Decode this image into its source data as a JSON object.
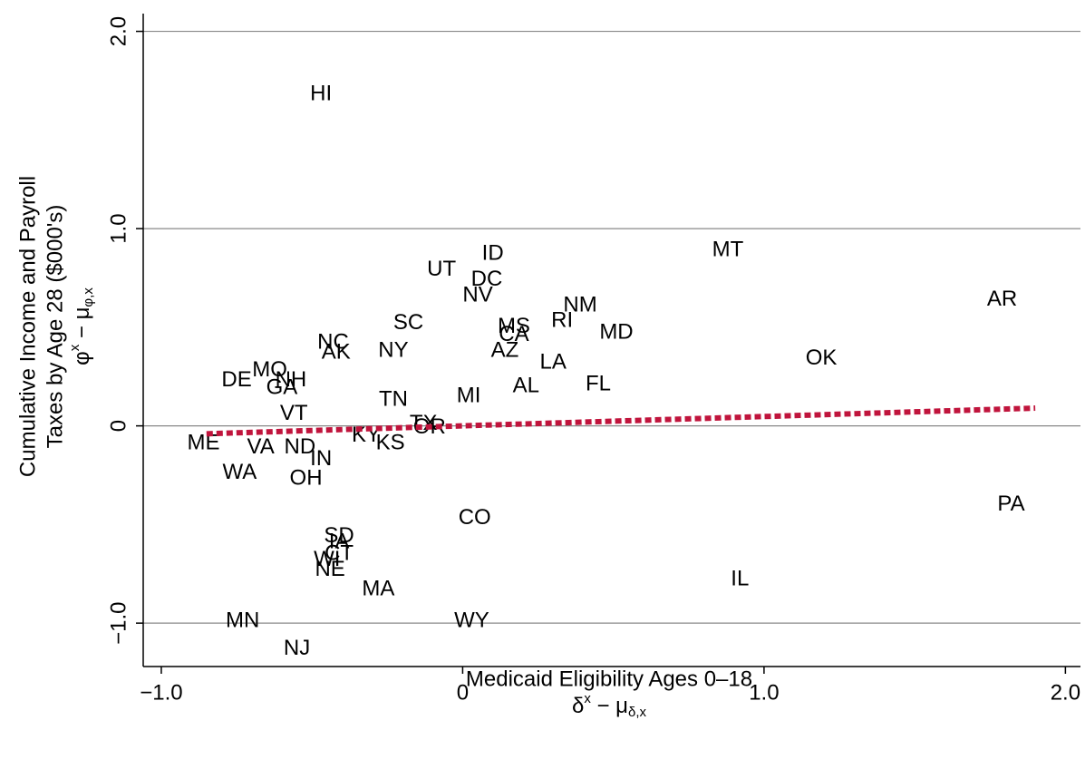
{
  "chart_data": {
    "type": "scatter",
    "y_label_lines": [
      "Cumulative Income and Payroll",
      "Taxes by Age 28 ($000's)"
    ],
    "y_math": {
      "base": "φ",
      "sup": "x",
      "mid": " − μ",
      "sub": "φ,x"
    },
    "x_label": "Medicaid Eligibility Ages 0–18",
    "x_math": {
      "base": "δ",
      "sup": "x",
      "mid": " − μ",
      "sub": "δ,x"
    },
    "xlim": [
      -1.06,
      2.05
    ],
    "ylim": [
      -1.22,
      2.09
    ],
    "xticks": [
      {
        "value": -1,
        "label": "−1.0"
      },
      0,
      {
        "value": 1,
        "label": "1.0"
      },
      {
        "value": 2,
        "label": "2.0"
      }
    ],
    "yticks": [
      {
        "value": -1,
        "label": "−1.0"
      },
      0,
      {
        "value": 1,
        "label": "1.0"
      },
      {
        "value": 2,
        "label": "2.0"
      }
    ],
    "grid": true,
    "point_labels": [
      "HI",
      "MT",
      "AR",
      "ID",
      "UT",
      "DC",
      "NV",
      "NM",
      "RI",
      "MD",
      "SC",
      "MS",
      "CA",
      "AZ",
      "LA",
      "OK",
      "NC",
      "AK",
      "NY",
      "MO",
      "DE",
      "NH",
      "GA",
      "AL",
      "FL",
      "TN",
      "MI",
      "VT",
      "TX",
      "OR",
      "KY",
      "KS",
      "ME",
      "VA",
      "ND",
      "IN",
      "WA",
      "OH",
      "PA",
      "CO",
      "SD",
      "IA",
      "CT",
      "WI",
      "NE",
      "MA",
      "IL",
      "MN",
      "WY",
      "NJ"
    ],
    "x": [
      -0.47,
      0.88,
      1.79,
      0.1,
      -0.07,
      0.08,
      0.05,
      0.39,
      0.33,
      0.51,
      -0.18,
      0.17,
      0.17,
      0.14,
      0.3,
      1.19,
      -0.43,
      -0.42,
      -0.23,
      -0.64,
      -0.75,
      -0.57,
      -0.6,
      0.21,
      0.45,
      -0.23,
      0.02,
      -0.56,
      -0.13,
      -0.11,
      -0.32,
      -0.24,
      -0.86,
      -0.67,
      -0.54,
      -0.47,
      -0.74,
      -0.52,
      1.82,
      0.04,
      -0.41,
      -0.41,
      -0.41,
      -0.45,
      -0.44,
      -0.28,
      0.92,
      -0.73,
      0.03,
      -0.55
    ],
    "values": [
      1.68,
      0.89,
      0.64,
      0.87,
      0.79,
      0.74,
      0.66,
      0.61,
      0.53,
      0.47,
      0.52,
      0.5,
      0.46,
      0.38,
      0.32,
      0.34,
      0.42,
      0.37,
      0.38,
      0.28,
      0.23,
      0.23,
      0.19,
      0.2,
      0.21,
      0.13,
      0.15,
      0.06,
      0.01,
      -0.01,
      -0.05,
      -0.09,
      -0.09,
      -0.11,
      -0.11,
      -0.17,
      -0.24,
      -0.27,
      -0.4,
      -0.47,
      -0.56,
      -0.59,
      -0.65,
      -0.68,
      -0.73,
      -0.83,
      -0.78,
      -0.99,
      -0.99,
      -1.13
    ],
    "fit_line": {
      "x": [
        -0.85,
        1.9
      ],
      "y": [
        -0.04,
        0.09
      ],
      "color": "#c0143c"
    }
  }
}
